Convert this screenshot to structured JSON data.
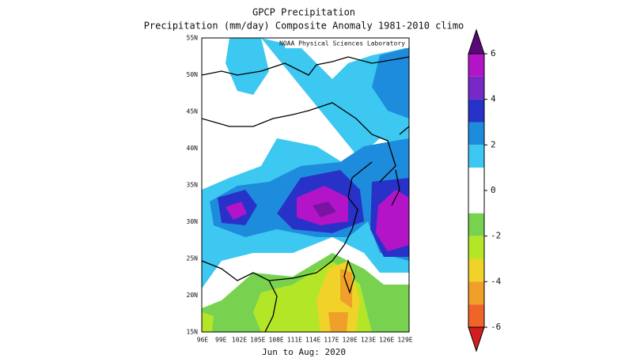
{
  "title": "GPCP Precipitation",
  "subtitle": "Precipitation (mm/day) Composite Anomaly 1981-2010 climo",
  "credit": "NOAA Physical Sciences Laboratory",
  "period": "Jun to Aug: 2020",
  "map": {
    "lat_labels": [
      "55N",
      "50N",
      "45N",
      "40N",
      "35N",
      "30N",
      "25N",
      "20N",
      "15N"
    ],
    "lon_labels": [
      "96E",
      "99E",
      "102E",
      "105E",
      "108E",
      "111E",
      "114E",
      "117E",
      "120E",
      "123E",
      "126E",
      "129E"
    ]
  },
  "colorbar": {
    "clim": [
      -6,
      6
    ],
    "ticks": [
      6,
      4,
      2,
      0,
      -2,
      -4,
      -6
    ],
    "colors": [
      "#5a0a78",
      "#b414c8",
      "#7828c8",
      "#2832c8",
      "#1e8cdc",
      "#3cc8f0",
      "#ffffff",
      "#ffffff",
      "#78d250",
      "#b4e628",
      "#f0d228",
      "#f0a028",
      "#f06428",
      "#d21e1e"
    ]
  }
}
